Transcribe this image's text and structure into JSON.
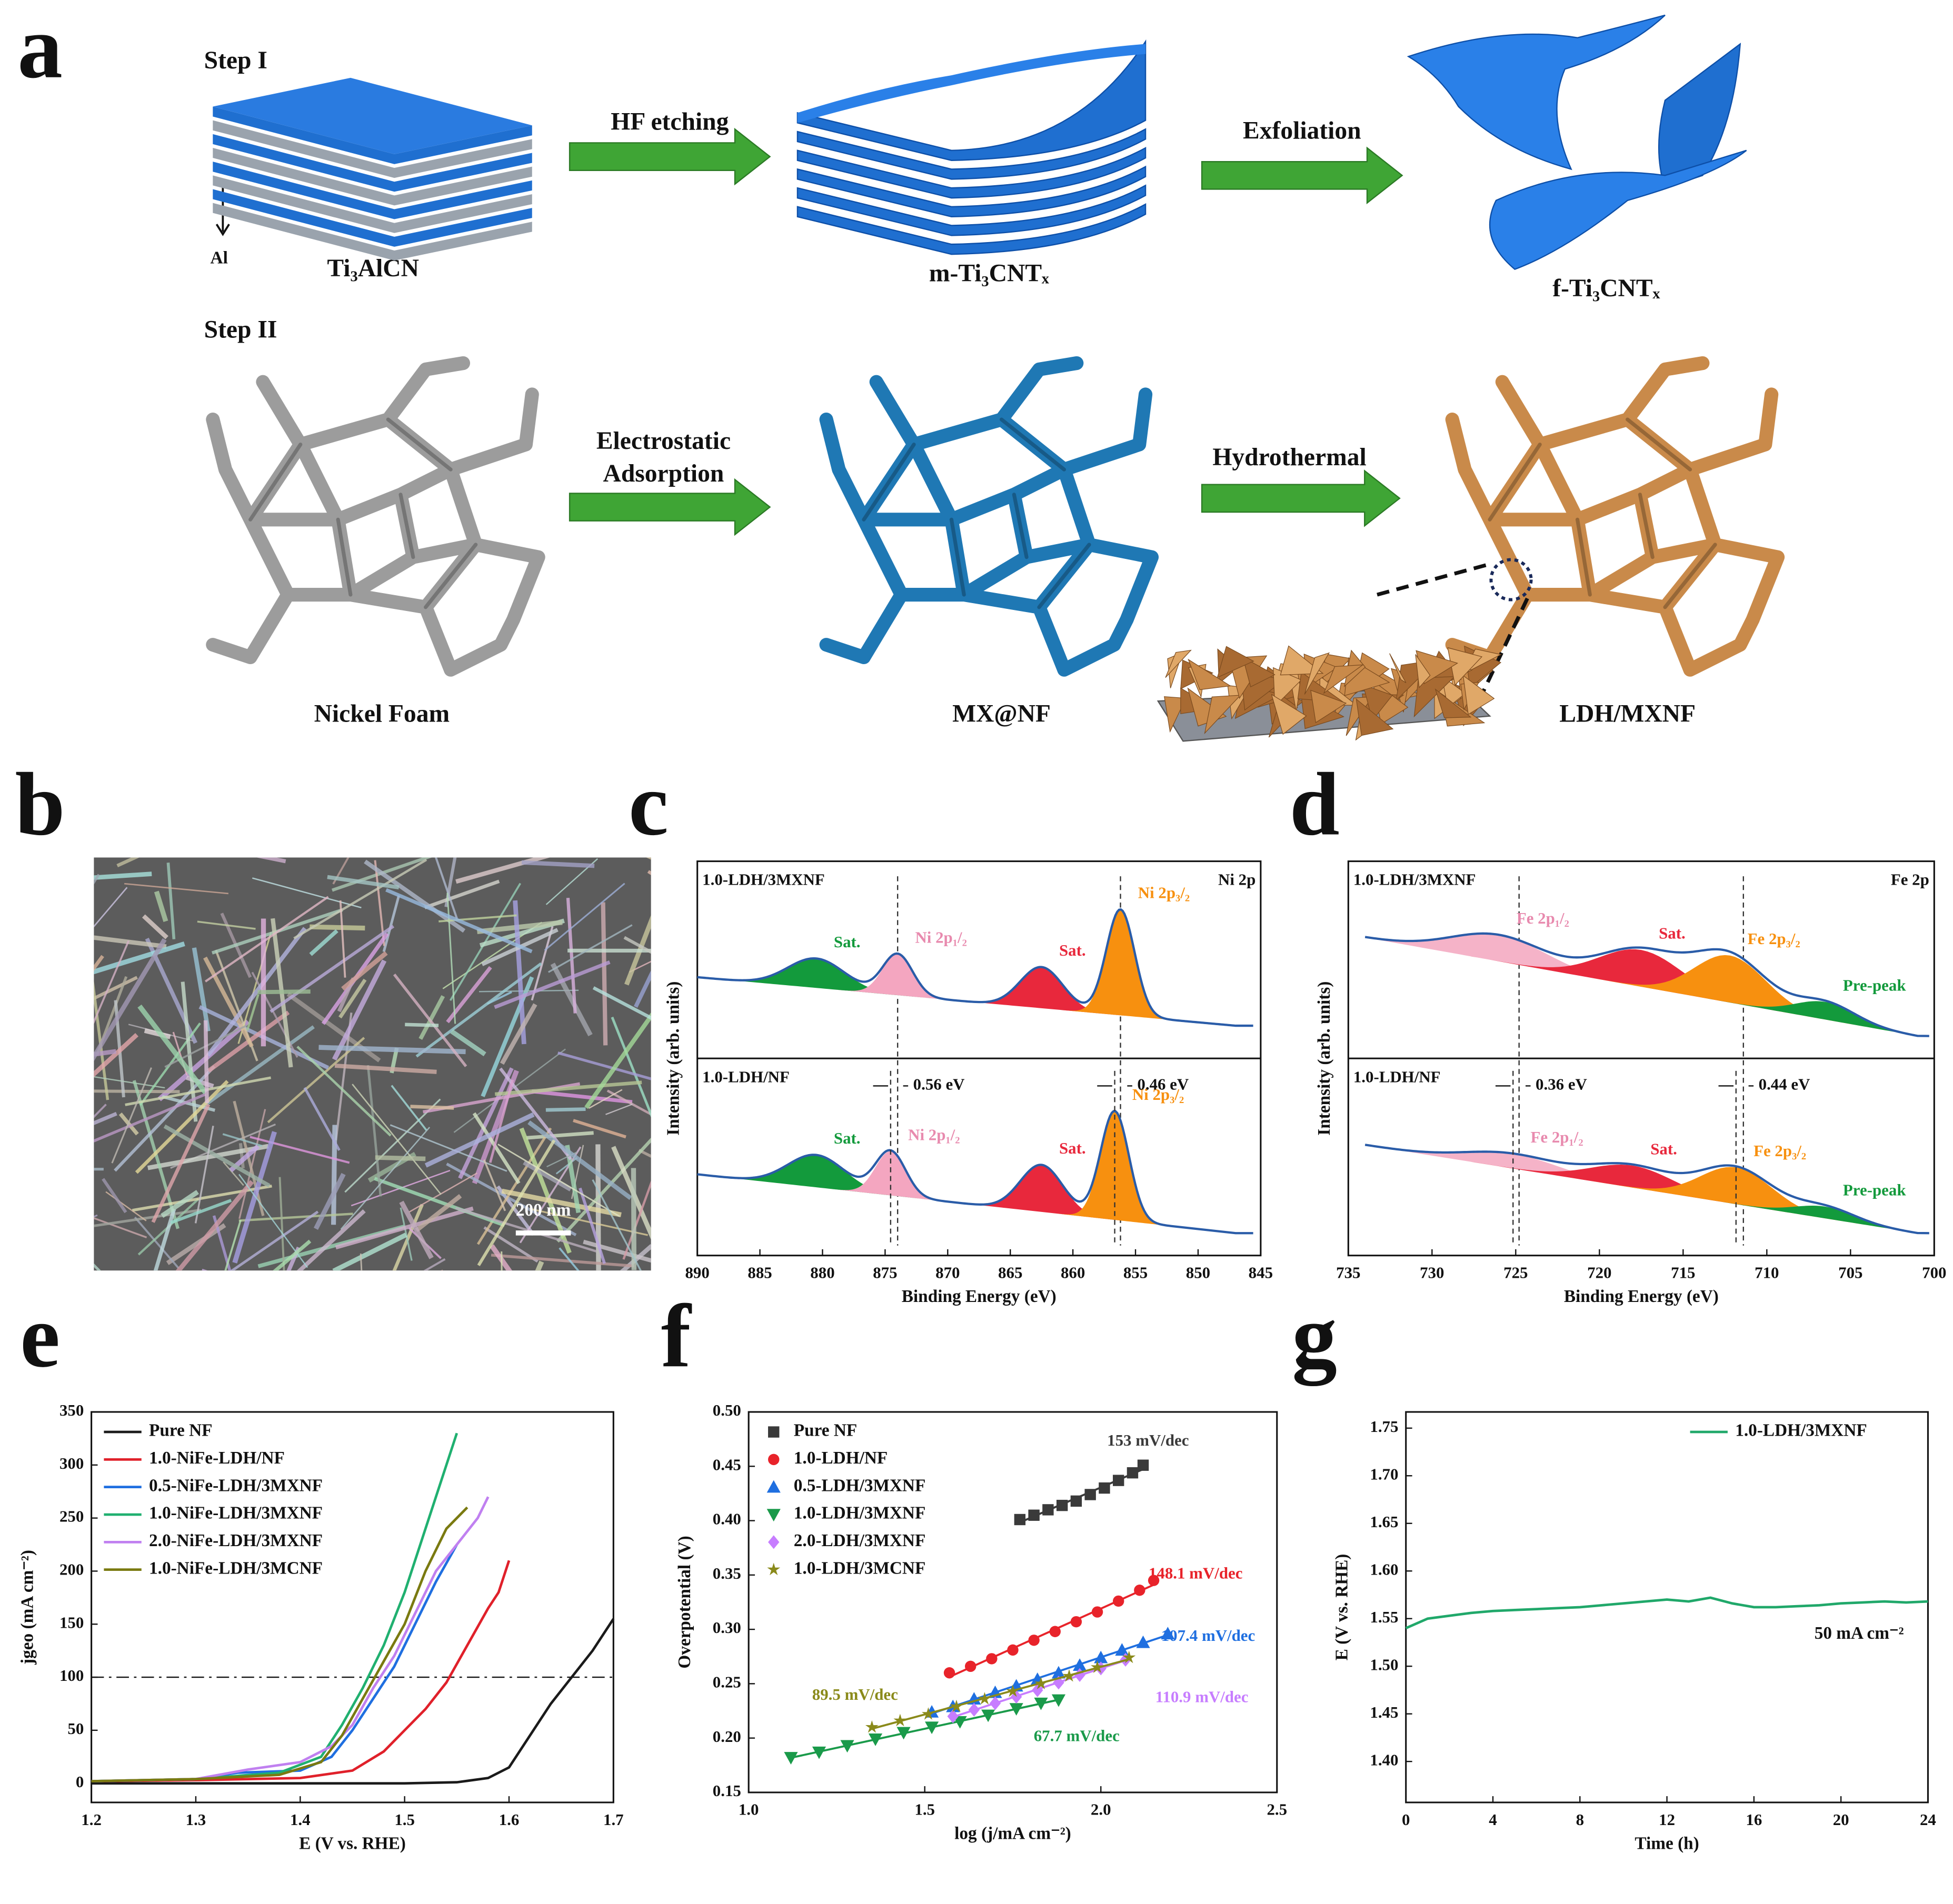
{
  "panel_labels": [
    "a",
    "b",
    "c",
    "d",
    "e",
    "f",
    "g"
  ],
  "diagram": {
    "step_1": "Step I",
    "step_2": "Step II",
    "al_label": "Al",
    "arrow_labels": [
      "HF etching",
      "Exfoliation",
      "Electrostatic",
      "Adsorption",
      "Hydrothermal"
    ],
    "materials": [
      "Ti₃AlCN",
      "m-Ti₃CNTₓ",
      "f-Ti₃CNTₓ",
      "Nickel Foam",
      "MX@NF",
      "LDH/MXNF"
    ]
  },
  "sem": {
    "scale_bar": "200 nm"
  },
  "chart_data": [
    {
      "type": "xps",
      "xlabel": "Binding Energy (eV)",
      "ylabel": "Intensity (arb. units)",
      "xlim": [
        890,
        845
      ],
      "xticks": [
        890,
        885,
        880,
        875,
        870,
        865,
        860,
        855,
        850,
        845
      ],
      "reference_lines": [
        874.0,
        856.2
      ],
      "panels": [
        {
          "label": "1.0-LDH/3MXNF",
          "core_label": "Ni 2p",
          "ylim": [
            0,
            1
          ],
          "x_range": [
            890,
            847
          ],
          "background": [
            0.45,
            0.12
          ],
          "peaks": [
            {
              "name": "Sat.",
              "color": "#139a3c",
              "center": 880.5,
              "height": 0.2,
              "width": 3.2
            },
            {
              "name": "Ni 2p₁/₂",
              "color": "#f4a6c0",
              "center": 874.0,
              "height": 0.28,
              "width": 1.7
            },
            {
              "name": "Sat.",
              "color": "#e8283c",
              "center": 862.5,
              "height": 0.28,
              "width": 2.4
            },
            {
              "name": "Ni 2p₃/₂",
              "color": "#f7900f",
              "center": 856.2,
              "height": 0.72,
              "width": 1.6
            }
          ]
        },
        {
          "label": "1.0-LDH/NF",
          "ylim": [
            0,
            1
          ],
          "x_range": [
            890,
            847
          ],
          "background": [
            0.45,
            0.05
          ],
          "peaks": [
            {
              "name": "Sat.",
              "color": "#139a3c",
              "center": 880.5,
              "height": 0.22,
              "width": 3.2
            },
            {
              "name": "Ni 2p₁/₂",
              "color": "#f4a6c0",
              "center": 874.56,
              "height": 0.3,
              "width": 1.7
            },
            {
              "name": "Sat.",
              "color": "#e8283c",
              "center": 862.5,
              "height": 0.32,
              "width": 2.4
            },
            {
              "name": "Ni 2p₃/₂",
              "color": "#f7900f",
              "center": 856.66,
              "height": 0.74,
              "width": 1.6
            }
          ],
          "shifts": [
            {
              "from": 874.56,
              "label": "0.56 eV"
            },
            {
              "from": 856.66,
              "label": "0.46 eV"
            }
          ]
        }
      ]
    },
    {
      "type": "xps",
      "xlabel": "Binding Energy (eV)",
      "ylabel": "Intensity (arb. units)",
      "xlim": [
        735,
        700
      ],
      "xticks": [
        735,
        730,
        725,
        720,
        715,
        710,
        705,
        700
      ],
      "reference_lines": [
        724.8,
        711.4
      ],
      "panels": [
        {
          "label": "1.0-LDH/3MXNF",
          "core_label": "Fe 2p",
          "ylim": [
            0,
            1
          ],
          "x_range": [
            734,
            701
          ],
          "background": [
            0.72,
            0.05
          ],
          "peaks": [
            {
              "name": "Fe 2p₁/₂",
              "color": "#f5b3c8",
              "center": 726.0,
              "height": 0.18,
              "width": 4
            },
            {
              "name": "Sat.",
              "color": "#e8283c",
              "center": 717.5,
              "height": 0.25,
              "width": 3.5
            },
            {
              "name": "Fe 2p₃/₂",
              "color": "#f7900f",
              "center": 712.2,
              "height": 0.32,
              "width": 3
            },
            {
              "name": "Pre-peak",
              "color": "#139a3c",
              "center": 706.5,
              "height": 0.12,
              "width": 2.5
            }
          ]
        },
        {
          "label": "1.0-LDH/NF",
          "ylim": [
            0,
            1
          ],
          "x_range": [
            734,
            701
          ],
          "background": [
            0.65,
            0.05
          ],
          "peaks": [
            {
              "name": "Fe 2p₁/₂",
              "color": "#f5b3c8",
              "center": 725.16,
              "height": 0.1,
              "width": 4
            },
            {
              "name": "Sat.",
              "color": "#e8283c",
              "center": 718.0,
              "height": 0.15,
              "width": 3.5
            },
            {
              "name": "Fe 2p₃/₂",
              "color": "#f7900f",
              "center": 711.84,
              "height": 0.25,
              "width": 3
            },
            {
              "name": "Pre-peak",
              "color": "#139a3c",
              "center": 706.5,
              "height": 0.08,
              "width": 2.5
            }
          ],
          "shifts": [
            {
              "from": 725.16,
              "label": "0.36 eV"
            },
            {
              "from": 711.84,
              "label": "0.44 eV"
            }
          ]
        }
      ]
    },
    {
      "type": "line",
      "xlabel": "E (V vs. RHE)",
      "ylabel": "jgeo (mA cm⁻²)",
      "xlim": [
        1.2,
        1.7
      ],
      "xticks": [
        1.2,
        1.3,
        1.4,
        1.5,
        1.6,
        1.7
      ],
      "ylim": [
        -18,
        350
      ],
      "yticks": [
        0,
        50,
        100,
        150,
        200,
        250,
        300,
        350
      ],
      "reference_line": 100,
      "legend": "upper left",
      "series": [
        {
          "name": "Pure NF",
          "color": "#1a1a1a",
          "x": [
            1.2,
            1.5,
            1.55,
            1.58,
            1.6,
            1.62,
            1.64,
            1.66,
            1.68,
            1.7
          ],
          "values": [
            0,
            0,
            1,
            5,
            15,
            45,
            75,
            100,
            125,
            155
          ]
        },
        {
          "name": "1.0-NiFe-LDH/NF",
          "color": "#e0202a",
          "x": [
            1.2,
            1.3,
            1.4,
            1.45,
            1.48,
            1.5,
            1.52,
            1.54,
            1.56,
            1.58,
            1.59,
            1.6
          ],
          "values": [
            2,
            3,
            5,
            12,
            30,
            50,
            70,
            95,
            130,
            165,
            180,
            210
          ]
        },
        {
          "name": "0.5-NiFe-LDH/3MXNF",
          "color": "#1f6fe0",
          "x": [
            1.2,
            1.3,
            1.34,
            1.4,
            1.43,
            1.45,
            1.47,
            1.49,
            1.51,
            1.53,
            1.55
          ],
          "values": [
            2,
            4,
            10,
            12,
            25,
            50,
            80,
            110,
            150,
            190,
            225
          ]
        },
        {
          "name": "1.0-NiFe-LDH/3MXNF",
          "color": "#20b070",
          "x": [
            1.2,
            1.3,
            1.38,
            1.42,
            1.44,
            1.46,
            1.48,
            1.5,
            1.52,
            1.54,
            1.55
          ],
          "values": [
            2,
            4,
            10,
            25,
            55,
            90,
            130,
            180,
            240,
            300,
            330
          ]
        },
        {
          "name": "2.0-NiFe-LDH/3MXNF",
          "color": "#c080f0",
          "x": [
            1.2,
            1.3,
            1.35,
            1.4,
            1.43,
            1.45,
            1.47,
            1.49,
            1.51,
            1.53,
            1.55,
            1.57,
            1.58
          ],
          "values": [
            2,
            4,
            13,
            20,
            35,
            55,
            90,
            120,
            160,
            200,
            225,
            250,
            270
          ]
        },
        {
          "name": "1.0-NiFe-LDH/3MCNF",
          "color": "#7a7a10",
          "x": [
            1.2,
            1.3,
            1.38,
            1.42,
            1.44,
            1.46,
            1.48,
            1.5,
            1.52,
            1.54,
            1.56
          ],
          "values": [
            2,
            4,
            8,
            20,
            45,
            80,
            115,
            150,
            200,
            240,
            260
          ]
        }
      ]
    },
    {
      "type": "scatter",
      "xlabel": "log (j/mA cm⁻²)",
      "ylabel": "Overpotential (V)",
      "xlim": [
        1.0,
        2.5
      ],
      "xticks": [
        {
          "value": 1.0,
          "label": "1.0"
        },
        1.5,
        {
          "value": 2.0,
          "label": "2.0"
        },
        2.5
      ],
      "ylim": [
        0.15,
        0.5
      ],
      "yticks": [
        0.15,
        {
          "value": 0.2,
          "label": "0.20"
        },
        0.25,
        {
          "value": 0.3,
          "label": "0.30"
        },
        0.35,
        {
          "value": 0.4,
          "label": "0.40"
        },
        0.45,
        {
          "value": 0.5,
          "label": "0.50"
        }
      ],
      "legend": "upper left",
      "series": [
        {
          "name": "Pure NF",
          "color": "#3a3a3a",
          "marker": "square",
          "slope_label": "153 mV/dec",
          "x": [
            1.77,
            1.81,
            1.85,
            1.89,
            1.93,
            1.97,
            2.01,
            2.05,
            2.09,
            2.12
          ],
          "values": [
            0.401,
            0.405,
            0.41,
            0.414,
            0.418,
            0.424,
            0.43,
            0.437,
            0.444,
            0.451
          ]
        },
        {
          "name": "1.0-LDH/NF",
          "color": "#e8232a",
          "marker": "circle",
          "slope_label": "148.1 mV/dec",
          "x": [
            1.57,
            1.63,
            1.69,
            1.75,
            1.81,
            1.87,
            1.93,
            1.99,
            2.05,
            2.11,
            2.15
          ],
          "values": [
            0.26,
            0.266,
            0.273,
            0.281,
            0.29,
            0.298,
            0.307,
            0.316,
            0.326,
            0.336,
            0.345
          ]
        },
        {
          "name": "0.5-LDH/3MXNF",
          "color": "#1f6fe0",
          "marker": "triangle-up",
          "slope_label": "107.4 mV/dec",
          "x": [
            1.52,
            1.58,
            1.64,
            1.7,
            1.76,
            1.82,
            1.88,
            1.94,
            2.0,
            2.06,
            2.12,
            2.19
          ],
          "values": [
            0.224,
            0.229,
            0.236,
            0.242,
            0.248,
            0.254,
            0.26,
            0.267,
            0.274,
            0.281,
            0.288,
            0.296
          ]
        },
        {
          "name": "1.0-LDH/3MXNF",
          "color": "#1a9a4a",
          "marker": "triangle-down",
          "slope_label": "67.7 mV/dec",
          "x": [
            1.12,
            1.2,
            1.28,
            1.36,
            1.44,
            1.52,
            1.6,
            1.68,
            1.76,
            1.83,
            1.88
          ],
          "values": [
            0.182,
            0.187,
            0.193,
            0.199,
            0.205,
            0.21,
            0.215,
            0.221,
            0.227,
            0.232,
            0.235
          ]
        },
        {
          "name": "2.0-LDH/3MXNF",
          "color": "#c77dff",
          "marker": "diamond",
          "slope_label": "110.9 mV/dec",
          "x": [
            1.58,
            1.64,
            1.7,
            1.76,
            1.82,
            1.88,
            1.94,
            2.0,
            2.07
          ],
          "values": [
            0.22,
            0.226,
            0.232,
            0.238,
            0.244,
            0.251,
            0.258,
            0.264,
            0.272
          ]
        },
        {
          "name": "1.0-LDH/3MCNF",
          "color": "#8a8a1a",
          "marker": "star",
          "slope_label": "89.5 mV/dec",
          "x": [
            1.35,
            1.43,
            1.51,
            1.59,
            1.67,
            1.75,
            1.83,
            1.91,
            1.99,
            2.08
          ],
          "values": [
            0.21,
            0.216,
            0.222,
            0.229,
            0.236,
            0.243,
            0.25,
            0.257,
            0.265,
            0.274
          ]
        }
      ]
    },
    {
      "type": "line",
      "xlabel": "Time (h)",
      "ylabel": "E (V vs. RHE)",
      "xlim": [
        0,
        24
      ],
      "xticks": [
        0,
        4,
        8,
        12,
        16,
        20,
        24
      ],
      "ylim": [
        1.357,
        1.767
      ],
      "yticks": [
        {
          "value": 1.4,
          "label": "1.40"
        },
        1.45,
        {
          "value": 1.5,
          "label": "1.50"
        },
        1.55,
        {
          "value": 1.6,
          "label": "1.60"
        },
        1.65,
        {
          "value": 1.7,
          "label": "1.70"
        },
        1.75
      ],
      "legend": "upper right",
      "annotation": "50 mA cm⁻²",
      "series": [
        {
          "name": "1.0-LDH/3MXNF",
          "color": "#20a86a",
          "x": [
            0,
            1,
            2,
            3,
            4,
            5,
            6,
            7,
            8,
            9,
            10,
            11,
            12,
            13,
            14,
            15,
            16,
            17,
            18,
            19,
            20,
            21,
            22,
            23,
            24
          ],
          "values": [
            1.54,
            1.55,
            1.553,
            1.556,
            1.558,
            1.559,
            1.56,
            1.561,
            1.562,
            1.564,
            1.566,
            1.568,
            1.57,
            1.568,
            1.572,
            1.566,
            1.562,
            1.562,
            1.563,
            1.564,
            1.566,
            1.567,
            1.568,
            1.567,
            1.568
          ]
        }
      ]
    }
  ]
}
